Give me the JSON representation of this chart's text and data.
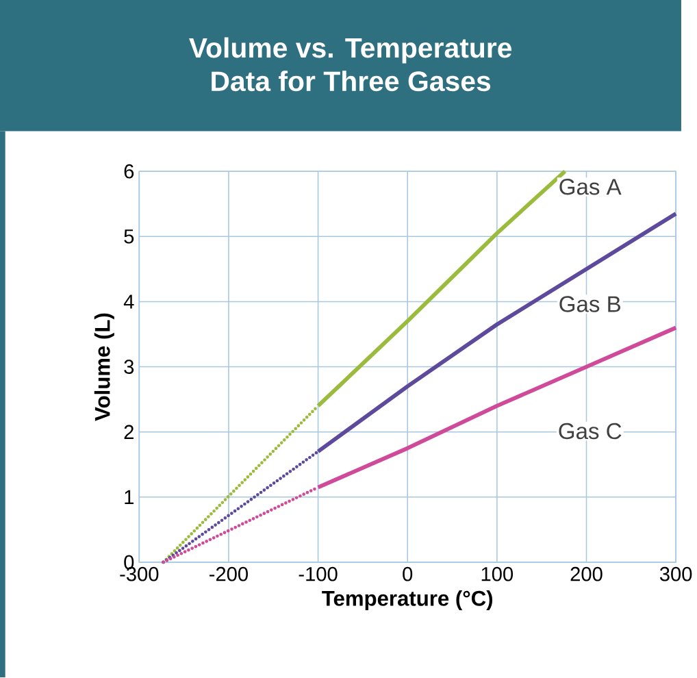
{
  "chart_data": {
    "type": "line",
    "title": "Volume vs. Temperature\nData for Three Gases",
    "xlabel": "Temperature (°C)",
    "ylabel": "Volume (L)",
    "xlim": [
      -300,
      300
    ],
    "ylim": [
      0,
      6
    ],
    "xticks": [
      -300,
      -200,
      -100,
      0,
      100,
      200,
      300
    ],
    "yticks": [
      0,
      1,
      2,
      3,
      4,
      5,
      6
    ],
    "grid": true,
    "series": [
      {
        "name": "Gas A",
        "color": "#9bbb3c",
        "line_style": "solid",
        "x": [
          -100,
          0,
          100,
          176
        ],
        "values": [
          2.4,
          3.7,
          5.05,
          6
        ]
      },
      {
        "name": "Gas B",
        "color": "#5e4a9c",
        "line_style": "solid",
        "x": [
          -100,
          0,
          100,
          300
        ],
        "values": [
          1.7,
          2.7,
          3.65,
          5.35
        ]
      },
      {
        "name": "Gas C",
        "color": "#d04a9a",
        "line_style": "solid",
        "x": [
          -100,
          0,
          100,
          200,
          300
        ],
        "values": [
          1.15,
          1.75,
          2.4,
          3.0,
          3.6
        ]
      },
      {
        "color": "#9bbb3c",
        "line_style": "dotted",
        "x": [
          -273,
          -100
        ],
        "values": [
          0,
          2.4
        ]
      },
      {
        "color": "#5e4a9c",
        "line_style": "dotted",
        "x": [
          -273,
          -100
        ],
        "values": [
          0,
          1.7
        ]
      },
      {
        "color": "#d04a9a",
        "line_style": "dotted",
        "x": [
          -273,
          -100
        ],
        "values": [
          0,
          1.15
        ]
      }
    ]
  }
}
